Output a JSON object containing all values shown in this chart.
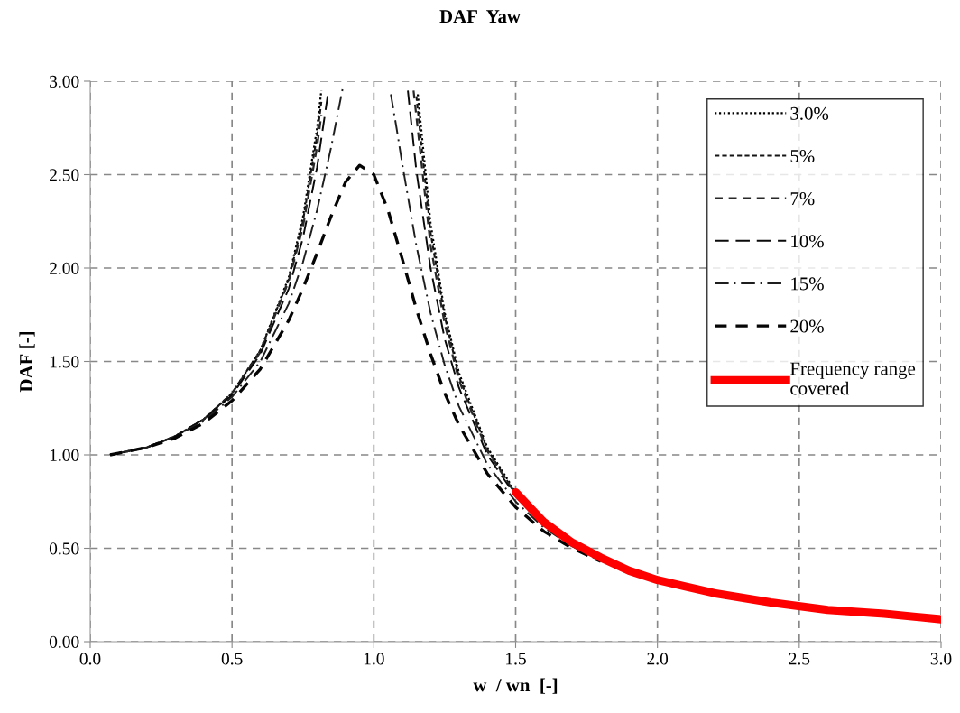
{
  "chart_data": {
    "type": "line",
    "title": "DAF  Yaw",
    "xlabel": "w  / wn  [-]",
    "ylabel": "DAF [-]",
    "xlim": [
      0,
      3
    ],
    "xticks": [
      {
        "value": 0,
        "label": "0.0"
      },
      {
        "value": 0.5,
        "label": "0.5"
      },
      {
        "value": 1,
        "label": "1.0"
      },
      {
        "value": 1.5,
        "label": "1.5"
      },
      {
        "value": 2,
        "label": "2.0"
      },
      {
        "value": 2.5,
        "label": "2.5"
      },
      {
        "value": 3,
        "label": "3.0"
      }
    ],
    "ylim": [
      0,
      3
    ],
    "yticks": [
      {
        "value": 0,
        "label": "0.00"
      },
      {
        "value": 0.5,
        "label": "0.50"
      },
      {
        "value": 1,
        "label": "1.00"
      },
      {
        "value": 1.5,
        "label": "1.50"
      },
      {
        "value": 2,
        "label": "2.00"
      },
      {
        "value": 2.5,
        "label": "2.50"
      },
      {
        "value": 3,
        "label": "3.00"
      }
    ],
    "grid": true,
    "legend": "top right",
    "marker": "none",
    "series": [
      {
        "name": "3.0%",
        "color": "#000000",
        "line_style": "dotted",
        "x": [
          0.07,
          0.2,
          0.3,
          0.4,
          0.5,
          0.6,
          0.7,
          0.75,
          0.8,
          0.815,
          1.0,
          1.155,
          1.2,
          1.25,
          1.3,
          1.4,
          1.5,
          1.6,
          1.7,
          1.8
        ],
        "values": [
          1.0,
          1.04,
          1.1,
          1.19,
          1.33,
          1.56,
          1.95,
          2.27,
          2.75,
          2.95,
          null,
          2.93,
          2.24,
          1.76,
          1.44,
          1.04,
          0.8,
          0.64,
          0.53,
          0.45
        ]
      },
      {
        "name": "5%",
        "color": "#141414",
        "line_style": "shortdash",
        "x": [
          0.07,
          0.2,
          0.3,
          0.4,
          0.5,
          0.6,
          0.7,
          0.75,
          0.8,
          0.815,
          1.0,
          1.15,
          1.2,
          1.25,
          1.3,
          1.4,
          1.5,
          1.6,
          1.7,
          1.8
        ],
        "values": [
          1.0,
          1.04,
          1.1,
          1.19,
          1.33,
          1.56,
          1.94,
          2.25,
          2.71,
          2.89,
          null,
          2.92,
          2.19,
          1.74,
          1.42,
          1.03,
          0.79,
          0.64,
          0.53,
          0.45
        ]
      },
      {
        "name": "7%",
        "color": "#282828",
        "line_style": "dashed",
        "x": [
          0.07,
          0.2,
          0.3,
          0.4,
          0.5,
          0.6,
          0.7,
          0.75,
          0.8,
          0.815,
          1.0,
          1.14,
          1.2,
          1.25,
          1.3,
          1.4,
          1.5,
          1.6,
          1.7,
          1.8
        ],
        "values": [
          1.0,
          1.04,
          1.1,
          1.19,
          1.33,
          1.55,
          1.93,
          2.22,
          2.65,
          2.82,
          null,
          2.95,
          2.12,
          1.7,
          1.4,
          1.02,
          0.79,
          0.63,
          0.52,
          0.44
        ]
      },
      {
        "name": "10%",
        "color": "#0a0a0a",
        "line_style": "longdash",
        "x": [
          0.07,
          0.2,
          0.3,
          0.4,
          0.5,
          0.6,
          0.7,
          0.75,
          0.8,
          0.84,
          1.0,
          1.12,
          1.15,
          1.2,
          1.25,
          1.3,
          1.4,
          1.5,
          1.6,
          1.7,
          1.8
        ],
        "values": [
          1.0,
          1.04,
          1.1,
          1.19,
          1.32,
          1.54,
          1.89,
          2.16,
          2.54,
          2.95,
          null,
          2.95,
          2.52,
          2.0,
          1.62,
          1.36,
          1.0,
          0.78,
          0.63,
          0.52,
          0.44
        ]
      },
      {
        "name": "15%",
        "color": "#1e1e1e",
        "line_style": "dashdot",
        "x": [
          0.07,
          0.2,
          0.3,
          0.4,
          0.5,
          0.6,
          0.7,
          0.75,
          0.8,
          0.85,
          0.89,
          1.0,
          1.06,
          1.08,
          1.1,
          1.15,
          1.2,
          1.25,
          1.3,
          1.4,
          1.5,
          1.6,
          1.7,
          1.8
        ],
        "values": [
          1.0,
          1.04,
          1.1,
          1.18,
          1.31,
          1.5,
          1.81,
          2.03,
          2.31,
          2.65,
          2.96,
          null,
          2.93,
          2.75,
          2.56,
          2.12,
          1.76,
          1.48,
          1.26,
          0.95,
          0.75,
          0.61,
          0.51,
          0.43
        ]
      },
      {
        "name": "20%",
        "color": "#050505",
        "line_style": "dashed",
        "x": [
          0.07,
          0.2,
          0.3,
          0.4,
          0.5,
          0.6,
          0.7,
          0.75,
          0.8,
          0.85,
          0.9,
          0.95,
          1.0,
          1.05,
          1.1,
          1.15,
          1.2,
          1.25,
          1.3,
          1.4,
          1.5,
          1.6,
          1.7,
          1.8
        ],
        "values": [
          1.0,
          1.04,
          1.09,
          1.17,
          1.29,
          1.46,
          1.72,
          1.89,
          2.08,
          2.28,
          2.46,
          2.55,
          2.5,
          2.31,
          2.05,
          1.78,
          1.54,
          1.33,
          1.16,
          0.9,
          0.72,
          0.59,
          0.5,
          0.43
        ]
      },
      {
        "name": "Frequency range\ncovered",
        "color": "#ff0000",
        "line_style": "solid",
        "x": [
          1.5,
          1.6,
          1.7,
          1.8,
          1.9,
          2.0,
          2.2,
          2.4,
          2.6,
          2.8,
          3.0
        ],
        "values": [
          0.8,
          0.64,
          0.53,
          0.45,
          0.38,
          0.33,
          0.26,
          0.21,
          0.17,
          0.15,
          0.12
        ]
      }
    ]
  }
}
